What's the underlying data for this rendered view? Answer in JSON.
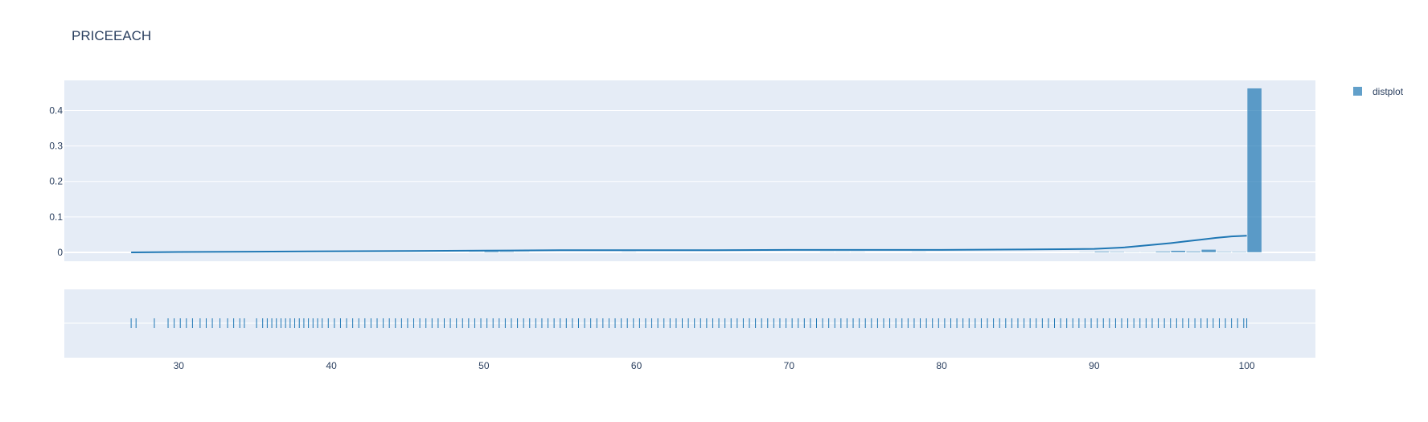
{
  "chart_data": {
    "type": "histogram",
    "title": "PRICEEACH",
    "legend": {
      "entries": [
        "distplot"
      ],
      "placement": "top-right"
    },
    "xlim": [
      22.5,
      104.5
    ],
    "x_ticks": [
      30,
      40,
      50,
      60,
      70,
      80,
      90,
      100
    ],
    "ylim": [
      -0.025,
      0.485
    ],
    "y_ticks": [
      0,
      0.1,
      0.2,
      0.3,
      0.4
    ],
    "y_tick_labels": [
      "0",
      "0.1",
      "0.2",
      "0.3",
      "0.4"
    ],
    "bin_width": 1.0,
    "histogram": {
      "bin_left_edges": [
        49,
        50,
        51,
        52,
        59,
        72,
        73,
        74,
        78,
        89,
        90,
        91,
        92,
        93,
        94,
        95,
        96,
        97,
        98,
        99,
        100
      ],
      "density": [
        0.001,
        0.003,
        0.002,
        0.001,
        0.001,
        0.001,
        0.001,
        0.001,
        0.0005,
        0.001,
        0.003,
        0.002,
        0.001,
        0.001,
        0.003,
        0.005,
        0.003,
        0.008,
        0.002,
        0.002,
        0.463
      ]
    },
    "kde": {
      "x": [
        26.88,
        30,
        35,
        40,
        45,
        50,
        55,
        60,
        65,
        70,
        75,
        80,
        85,
        88,
        90,
        91,
        92,
        93,
        94,
        95,
        96,
        97,
        98,
        99,
        100
      ],
      "y": [
        0.0,
        0.001,
        0.002,
        0.003,
        0.004,
        0.005,
        0.006,
        0.006,
        0.006,
        0.007,
        0.007,
        0.007,
        0.008,
        0.009,
        0.01,
        0.012,
        0.014,
        0.018,
        0.022,
        0.026,
        0.031,
        0.036,
        0.041,
        0.045,
        0.047
      ]
    },
    "rug": {
      "x": [
        26.88,
        27.2,
        28.4,
        29.3,
        29.7,
        30.1,
        30.5,
        30.9,
        31.4,
        31.8,
        32.2,
        32.7,
        33.2,
        33.6,
        34.0,
        34.3,
        35.1,
        35.5,
        35.8,
        36.1,
        36.4,
        36.7,
        37.0,
        37.3,
        37.6,
        37.9,
        38.2,
        38.5,
        38.8,
        39.1,
        39.4,
        39.8,
        40.2,
        40.6,
        41.0,
        41.4,
        41.8,
        42.2,
        42.6,
        43.0,
        43.4,
        43.8,
        44.2,
        44.6,
        45.0,
        45.4,
        45.8,
        46.2,
        46.6,
        47.0,
        47.4,
        47.8,
        48.2,
        48.6,
        49.0,
        49.4,
        49.8,
        50.2,
        50.6,
        51.0,
        51.4,
        51.8,
        52.2,
        52.6,
        53.0,
        53.4,
        53.8,
        54.2,
        54.6,
        55.0,
        55.4,
        55.8,
        56.2,
        56.6,
        57.0,
        57.4,
        57.8,
        58.2,
        58.6,
        59.0,
        59.4,
        59.8,
        60.2,
        60.6,
        61.0,
        61.4,
        61.8,
        62.2,
        62.6,
        63.0,
        63.4,
        63.8,
        64.2,
        64.6,
        65.0,
        65.4,
        65.8,
        66.2,
        66.6,
        67.0,
        67.4,
        67.8,
        68.2,
        68.6,
        69.0,
        69.4,
        69.8,
        70.2,
        70.6,
        71.0,
        71.4,
        71.8,
        72.2,
        72.6,
        73.0,
        73.4,
        73.8,
        74.2,
        74.6,
        75.0,
        75.4,
        75.8,
        76.2,
        76.6,
        77.0,
        77.4,
        77.8,
        78.2,
        78.6,
        79.0,
        79.4,
        79.8,
        80.2,
        80.6,
        81.0,
        81.4,
        81.8,
        82.2,
        82.6,
        83.0,
        83.4,
        83.8,
        84.2,
        84.6,
        85.0,
        85.4,
        85.8,
        86.2,
        86.6,
        87.0,
        87.4,
        87.8,
        88.2,
        88.6,
        89.0,
        89.4,
        89.8,
        90.2,
        90.6,
        91.0,
        91.4,
        91.8,
        92.2,
        92.6,
        93.0,
        93.4,
        93.8,
        94.2,
        94.6,
        95.0,
        95.4,
        95.8,
        96.2,
        96.6,
        97.0,
        97.4,
        97.8,
        98.2,
        98.6,
        99.0,
        99.4,
        99.8,
        100.0
      ]
    }
  },
  "colors": {
    "bar": "#1f77b4",
    "plot_bg": "#e5ecf6",
    "grid": "#ffffff",
    "text": "#2a3f5f"
  }
}
